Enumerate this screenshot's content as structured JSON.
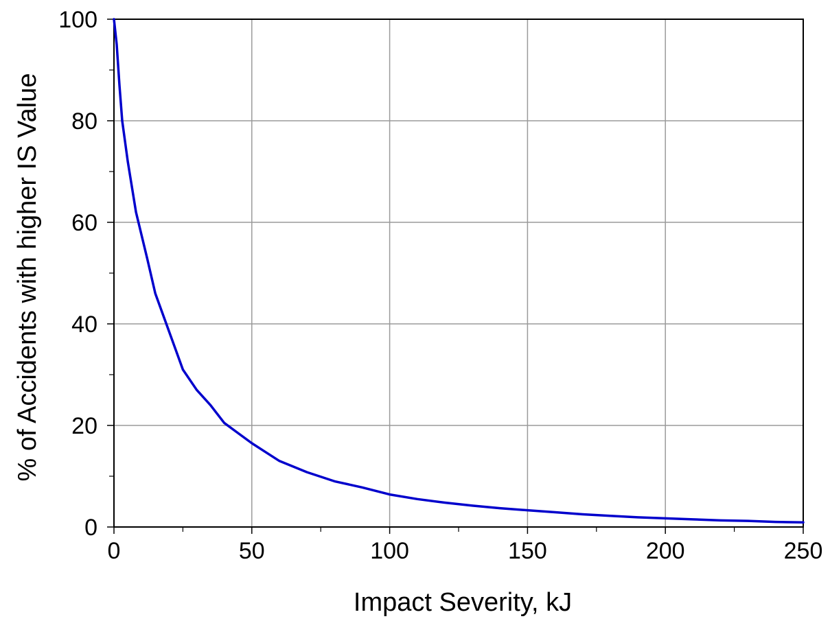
{
  "chart_data": {
    "type": "line",
    "title": "",
    "xlabel": "Impact Severity, kJ",
    "ylabel": "% of Accidents with higher IS Value",
    "xlim": [
      0,
      250
    ],
    "ylim": [
      0,
      100
    ],
    "x_ticks": [
      0,
      50,
      100,
      150,
      200,
      250
    ],
    "y_ticks": [
      0,
      20,
      40,
      60,
      80,
      100
    ],
    "x_minor_step": 25,
    "y_minor_step": 10,
    "grid": true,
    "legend": "none",
    "line_color": "#0000cc",
    "grid_color": "#9a9a9a",
    "series": [
      {
        "x": [
          0,
          1,
          2,
          3,
          5,
          8,
          12,
          15,
          20,
          25,
          30,
          35,
          40,
          45,
          50,
          60,
          70,
          80,
          90,
          100,
          110,
          120,
          130,
          140,
          150,
          160,
          170,
          180,
          190,
          200,
          210,
          220,
          230,
          240,
          250
        ],
        "values": [
          100,
          95,
          87,
          80,
          72,
          62,
          53,
          46,
          38.5,
          31,
          27,
          24,
          20.5,
          18.5,
          16.5,
          13,
          10.8,
          9,
          7.8,
          6.4,
          5.5,
          4.8,
          4.2,
          3.7,
          3.3,
          2.9,
          2.5,
          2.2,
          1.9,
          1.7,
          1.5,
          1.3,
          1.2,
          1.0,
          0.9
        ]
      }
    ]
  }
}
